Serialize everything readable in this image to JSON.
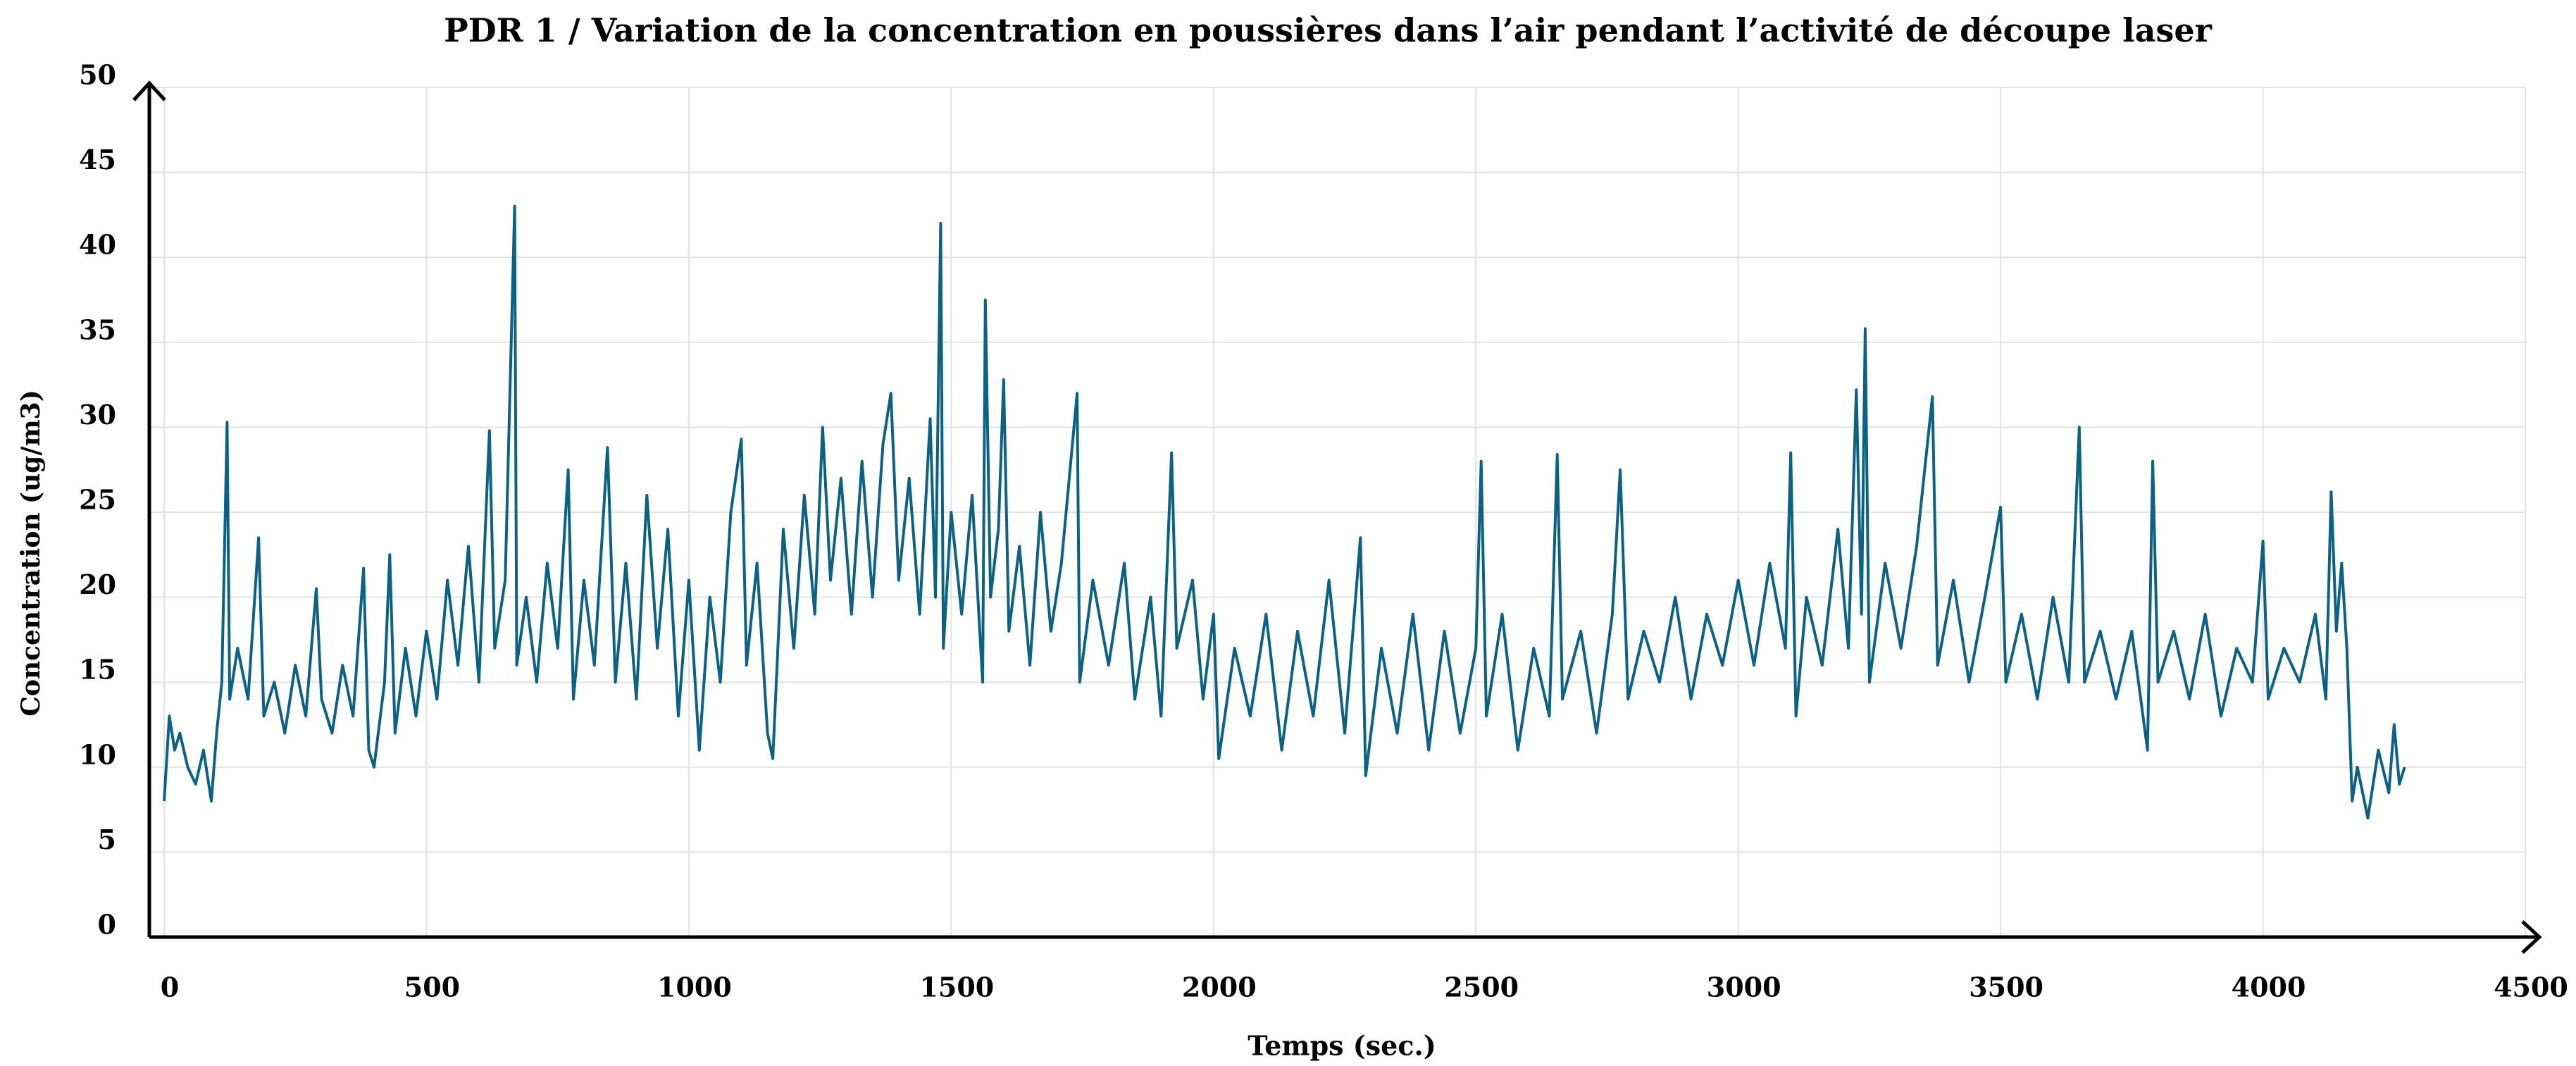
{
  "chart_data": {
    "type": "line",
    "title": "PDR 1 / Variation de la concentration en poussières dans l’air pendant l’activité de découpe laser",
    "x_label": "Temps (sec.)",
    "y_label": "Concentration (ug/m3)",
    "xlim": [
      0,
      4500
    ],
    "xticks": [
      0,
      500,
      1000,
      1500,
      2000,
      2500,
      3000,
      3500,
      4000,
      4500
    ],
    "ylim": [
      0,
      50
    ],
    "yticks": [
      0,
      5,
      10,
      15,
      20,
      25,
      30,
      35,
      40,
      45,
      50
    ],
    "grid": true,
    "series": [
      {
        "color": "#0a6385",
        "x": [
          0,
          10,
          20,
          30,
          45,
          60,
          75,
          90,
          100,
          110,
          120,
          125,
          140,
          160,
          180,
          190,
          210,
          230,
          250,
          270,
          290,
          300,
          320,
          340,
          360,
          380,
          390,
          400,
          420,
          430,
          440,
          460,
          480,
          500,
          520,
          540,
          560,
          580,
          600,
          620,
          630,
          650,
          668,
          672,
          690,
          710,
          730,
          750,
          770,
          780,
          800,
          820,
          845,
          860,
          880,
          900,
          920,
          940,
          960,
          980,
          1000,
          1020,
          1040,
          1060,
          1080,
          1100,
          1110,
          1130,
          1150,
          1160,
          1180,
          1200,
          1220,
          1240,
          1255,
          1270,
          1290,
          1310,
          1330,
          1350,
          1370,
          1385,
          1400,
          1420,
          1440,
          1460,
          1470,
          1480,
          1485,
          1500,
          1520,
          1540,
          1560,
          1565,
          1575,
          1590,
          1600,
          1610,
          1630,
          1650,
          1670,
          1690,
          1710,
          1740,
          1745,
          1770,
          1800,
          1830,
          1850,
          1880,
          1900,
          1920,
          1930,
          1960,
          1980,
          2000,
          2010,
          2040,
          2070,
          2100,
          2130,
          2160,
          2190,
          2220,
          2250,
          2280,
          2290,
          2320,
          2350,
          2380,
          2410,
          2440,
          2470,
          2500,
          2510,
          2520,
          2550,
          2580,
          2610,
          2640,
          2655,
          2665,
          2700,
          2730,
          2760,
          2775,
          2790,
          2820,
          2850,
          2880,
          2910,
          2940,
          2970,
          3000,
          3030,
          3060,
          3090,
          3100,
          3110,
          3130,
          3160,
          3190,
          3210,
          3225,
          3235,
          3242,
          3250,
          3280,
          3310,
          3340,
          3370,
          3380,
          3410,
          3440,
          3470,
          3500,
          3510,
          3540,
          3570,
          3600,
          3630,
          3650,
          3660,
          3690,
          3720,
          3750,
          3780,
          3790,
          3800,
          3830,
          3860,
          3890,
          3920,
          3950,
          3980,
          4000,
          4010,
          4040,
          4070,
          4100,
          4120,
          4130,
          4140,
          4150,
          4160,
          4170,
          4180,
          4200,
          4220,
          4240,
          4250,
          4260,
          4270
        ],
        "values": [
          8,
          13,
          11,
          12,
          10,
          9,
          11,
          8,
          12,
          15,
          30.3,
          14,
          17,
          14,
          23.5,
          13,
          15,
          12,
          16,
          13,
          20.5,
          14,
          12,
          16,
          13,
          21.7,
          11,
          10,
          15,
          22.5,
          12,
          17,
          13,
          18,
          14,
          21,
          16,
          23,
          15,
          29.8,
          17,
          21,
          43,
          16,
          20,
          15,
          22,
          17,
          27.5,
          14,
          21,
          16,
          28.8,
          15,
          22,
          14,
          26,
          17,
          24,
          13,
          21,
          11,
          20,
          15,
          25,
          29.3,
          16,
          22,
          12,
          10.5,
          24,
          17,
          26,
          19,
          30,
          21,
          27,
          19,
          28,
          20,
          29,
          32,
          21,
          27,
          19,
          30.5,
          20,
          42,
          17,
          25,
          19,
          26,
          15,
          37.5,
          20,
          24,
          32.8,
          18,
          23,
          16,
          25,
          18,
          22,
          32,
          15,
          21,
          16,
          22,
          14,
          20,
          13,
          28.5,
          17,
          21,
          14,
          19,
          10.5,
          17,
          13,
          19,
          11,
          18,
          13,
          21,
          12,
          23.5,
          9.5,
          17,
          12,
          19,
          11,
          18,
          12,
          17,
          28,
          13,
          19,
          11,
          17,
          13,
          28.4,
          14,
          18,
          12,
          19,
          27.5,
          14,
          18,
          15,
          20,
          14,
          19,
          16,
          21,
          16,
          22,
          17,
          28.5,
          13,
          20,
          16,
          24,
          17,
          32.2,
          19,
          35.8,
          15,
          22,
          17,
          23,
          31.8,
          16,
          21,
          15,
          20,
          25.3,
          15,
          19,
          14,
          20,
          15,
          30,
          15,
          18,
          14,
          18,
          11,
          28,
          15,
          18,
          14,
          19,
          13,
          17,
          15,
          23.3,
          14,
          17,
          15,
          19,
          14,
          26.2,
          18,
          22,
          17,
          8,
          10,
          7,
          11,
          8.5,
          12.5,
          9,
          10
        ]
      }
    ]
  }
}
